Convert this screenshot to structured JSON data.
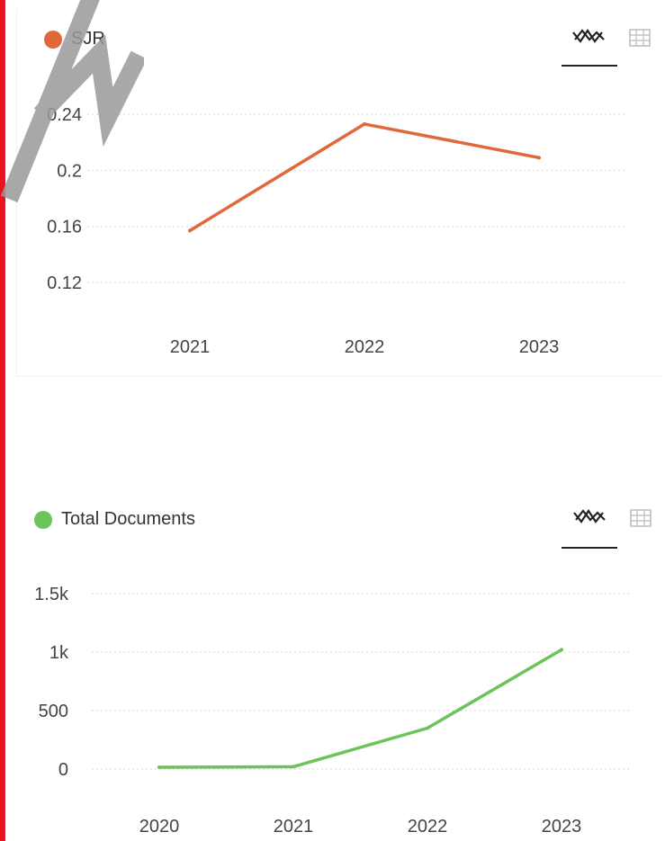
{
  "charts": [
    {
      "legend": {
        "label": "SJR",
        "color": "#e0683a"
      },
      "view_toggle": {
        "active": "line-chart-icon",
        "inactive": "table-icon"
      }
    },
    {
      "legend": {
        "label": "Total Documents",
        "color": "#6cc35a"
      },
      "view_toggle": {
        "active": "line-chart-icon",
        "inactive": "table-icon"
      }
    }
  ],
  "chart_data": [
    {
      "type": "line",
      "title": "",
      "xlabel": "",
      "ylabel": "",
      "categories": [
        "2021",
        "2022",
        "2023"
      ],
      "series": [
        {
          "name": "SJR",
          "values": [
            0.157,
            0.233,
            0.209
          ],
          "color": "#e0683a"
        }
      ],
      "yticks": [
        0.12,
        0.16,
        0.2,
        0.24
      ],
      "ytick_labels": [
        "0.12",
        "0.16",
        "0.2",
        "0.24"
      ],
      "ylim": [
        0.095,
        0.24
      ],
      "grid": true,
      "legend_position": "top-left"
    },
    {
      "type": "line",
      "title": "",
      "xlabel": "",
      "ylabel": "",
      "categories": [
        "2020",
        "2021",
        "2022",
        "2023"
      ],
      "series": [
        {
          "name": "Total Documents",
          "values": [
            15,
            20,
            350,
            1020
          ],
          "color": "#6cc35a"
        }
      ],
      "yticks": [
        0,
        500,
        1000,
        1500
      ],
      "ytick_labels": [
        "0",
        "500",
        "1k",
        "1.5k"
      ],
      "ylim": [
        0,
        1500
      ],
      "grid": true,
      "legend_position": "top-left"
    }
  ]
}
